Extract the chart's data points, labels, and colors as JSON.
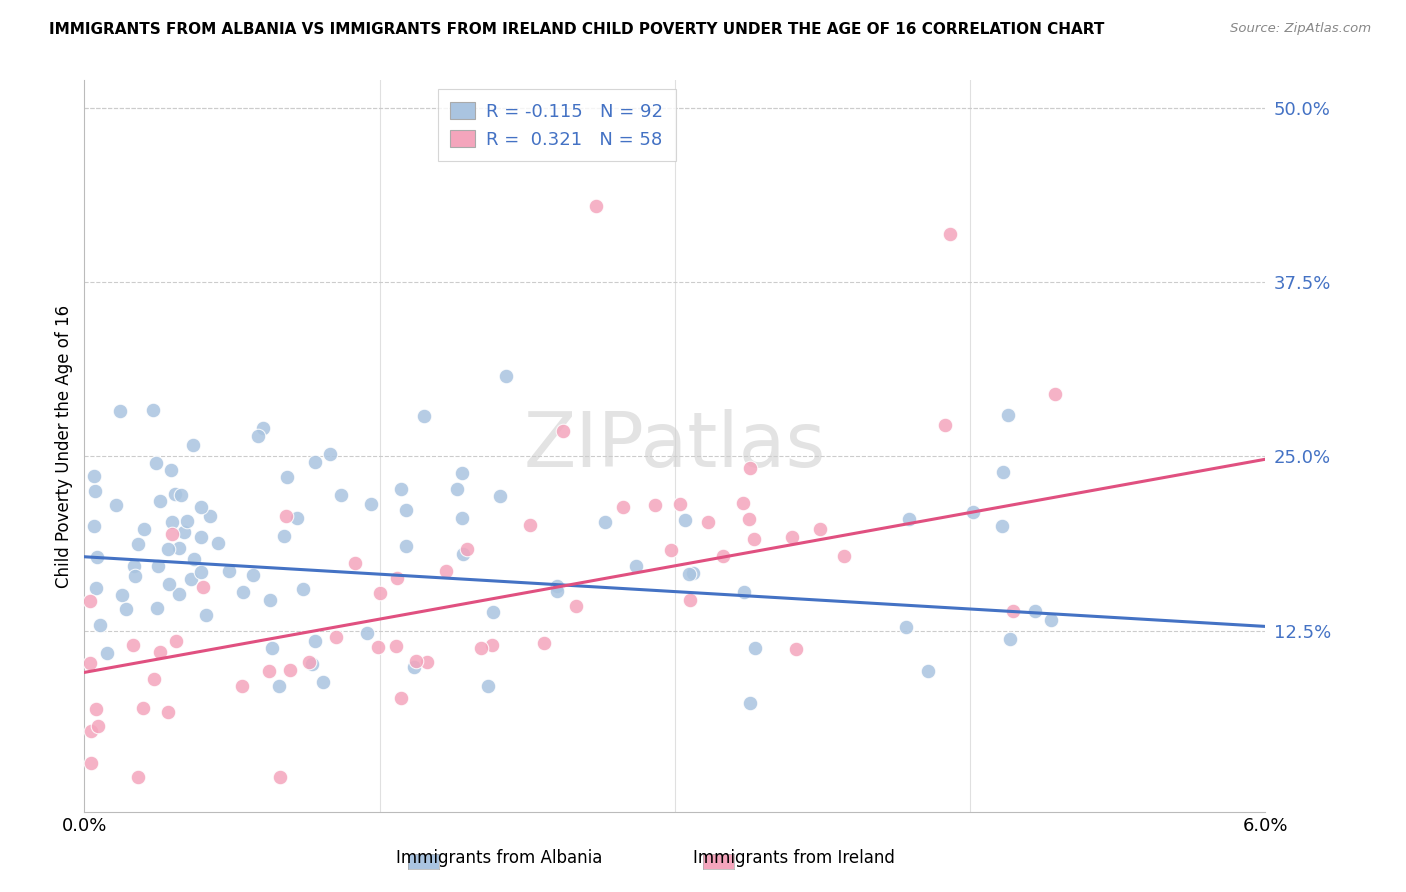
{
  "title": "IMMIGRANTS FROM ALBANIA VS IMMIGRANTS FROM IRELAND CHILD POVERTY UNDER THE AGE OF 16 CORRELATION CHART",
  "source": "Source: ZipAtlas.com",
  "ylabel": "Child Poverty Under the Age of 16",
  "xlim": [
    0.0,
    0.06
  ],
  "ylim": [
    -0.005,
    0.52
  ],
  "albania_R": -0.115,
  "albania_N": 92,
  "ireland_R": 0.321,
  "ireland_N": 58,
  "albania_color": "#aac4e0",
  "ireland_color": "#f4a5bc",
  "albania_line_color": "#4472C4",
  "ireland_line_color": "#e05080",
  "legend_label_albania": "Immigrants from Albania",
  "legend_label_ireland": "Immigrants from Ireland",
  "ytick_vals": [
    0.0,
    0.125,
    0.25,
    0.375,
    0.5
  ],
  "ytick_labels": [
    "",
    "12.5%",
    "25.0%",
    "37.5%",
    "50.0%"
  ],
  "albania_line_y0": 0.178,
  "albania_line_y1": 0.128,
  "ireland_line_y0": 0.095,
  "ireland_line_y1": 0.248
}
